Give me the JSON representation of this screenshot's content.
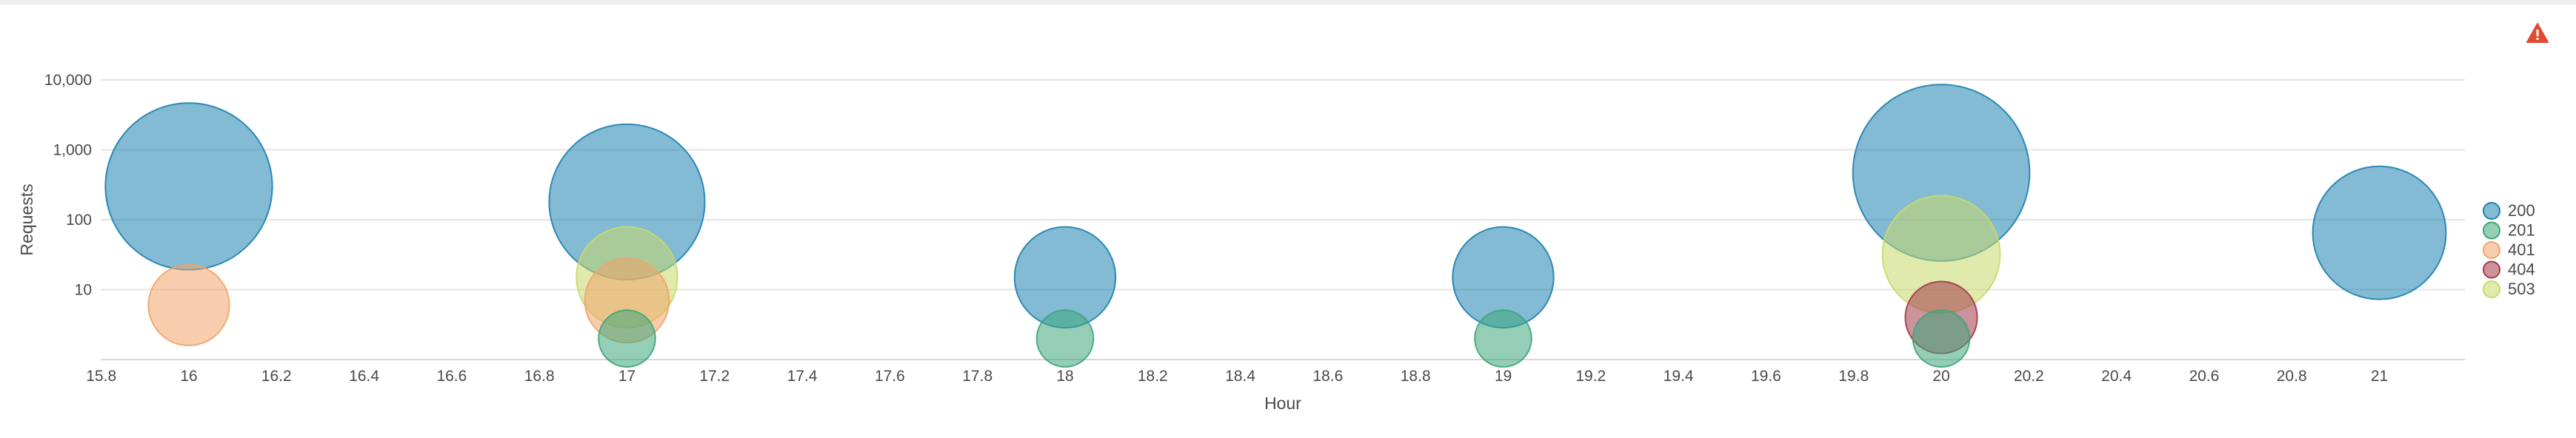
{
  "chart_data": {
    "type": "scatter",
    "subtype": "bubble",
    "xlabel": "Hour",
    "ylabel": "Requests",
    "xlim": [
      15.8,
      21.2
    ],
    "xticks": [
      "15.8",
      "16",
      "16.2",
      "16.4",
      "16.6",
      "16.8",
      "17",
      "17.2",
      "17.4",
      "17.6",
      "17.8",
      "18",
      "18.2",
      "18.4",
      "18.6",
      "18.8",
      "19",
      "19.2",
      "19.4",
      "19.6",
      "19.8",
      "20",
      "20.2",
      "20.4",
      "20.6",
      "20.8",
      "21"
    ],
    "yscale": "log",
    "ylim": [
      1,
      10000
    ],
    "yticks": [
      "10",
      "100",
      "1,000",
      "10,000"
    ],
    "grid": true,
    "legend_position": "right",
    "series": [
      {
        "name": "200",
        "color": "#1e81b0",
        "points": [
          {
            "x": 16,
            "y": 300,
            "size": 300
          },
          {
            "x": 17,
            "y": 180,
            "size": 180
          },
          {
            "x": 18,
            "y": 15,
            "size": 15
          },
          {
            "x": 19,
            "y": 15,
            "size": 15
          },
          {
            "x": 20,
            "y": 470,
            "size": 470
          },
          {
            "x": 21,
            "y": 65,
            "size": 65
          }
        ]
      },
      {
        "name": "201",
        "color": "#3da57a",
        "points": [
          {
            "x": 17,
            "y": 2,
            "size": 2
          },
          {
            "x": 18,
            "y": 2,
            "size": 2
          },
          {
            "x": 19,
            "y": 2,
            "size": 2
          },
          {
            "x": 20,
            "y": 2,
            "size": 2
          }
        ]
      },
      {
        "name": "401",
        "color": "#f0a46a",
        "points": [
          {
            "x": 16,
            "y": 6,
            "size": 6
          },
          {
            "x": 17,
            "y": 7,
            "size": 7
          }
        ]
      },
      {
        "name": "404",
        "color": "#a33a4a",
        "points": [
          {
            "x": 20,
            "y": 4,
            "size": 4
          }
        ]
      },
      {
        "name": "503",
        "color": "#c8d96a",
        "points": [
          {
            "x": 17,
            "y": 15,
            "size": 15
          },
          {
            "x": 20,
            "y": 32,
            "size": 32
          }
        ]
      }
    ]
  },
  "warning_icon": "warning-triangle-icon",
  "warning_color": "#e14b32"
}
